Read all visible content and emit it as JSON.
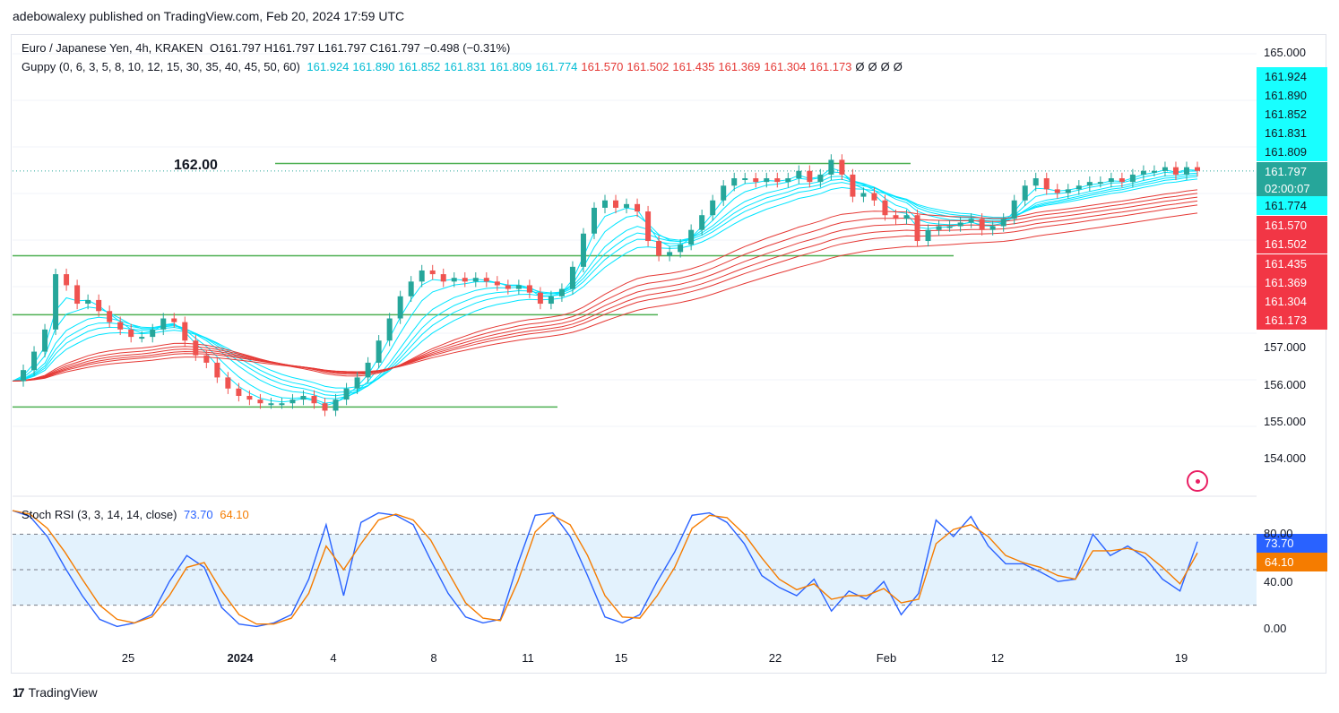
{
  "header": {
    "published": "adebowalexy published on TradingView.com, Feb 20, 2024 17:59 UTC"
  },
  "main_legend": {
    "symbol": "Euro / Japanese Yen, 4h, KRAKEN",
    "ohlc": "O161.797 H161.797 L161.797 C161.797 −0.498 (−0.31%)"
  },
  "guppy_legend": {
    "title": "Guppy (0, 6, 3, 5, 8, 10, 12, 15, 30, 35, 40, 45, 50, 60)",
    "short_values": [
      "161.924",
      "161.890",
      "161.852",
      "161.831",
      "161.809",
      "161.774"
    ],
    "long_values": [
      "161.570",
      "161.502",
      "161.435",
      "161.369",
      "161.304",
      "161.173"
    ],
    "empty_values": [
      "Ø",
      "Ø",
      "Ø",
      "Ø"
    ]
  },
  "stoch_legend": {
    "title": "Stoch RSI (3, 3, 14, 14, close)",
    "k": "73.70",
    "d": "64.10"
  },
  "annotation": {
    "level_label": "162.00"
  },
  "price_badge": {
    "price": "161.797",
    "timer": "02:00:07"
  },
  "colors": {
    "up": "#26a69a",
    "down": "#ef5350",
    "short_ema": "#00e5ff",
    "long_ema": "#e53935",
    "support": "#4caf50",
    "k_line": "#2962ff",
    "d_line": "#f57c00",
    "band": "#e3f2fd"
  },
  "footer": {
    "brand": "TradingView"
  },
  "chart_data": [
    {
      "type": "candlestick",
      "title": "Euro / Japanese Yen, 4h, KRAKEN",
      "y_ticks": [
        "165.000",
        "157.000",
        "156.000",
        "155.000",
        "154.000"
      ],
      "x_ticks": [
        "25",
        "2024",
        "4",
        "8",
        "11",
        "15",
        "22",
        "Feb",
        "12",
        "19"
      ],
      "horizontal_lines": [
        162.0,
        159.5,
        157.9,
        155.4
      ],
      "last_price": 161.797,
      "closes": [
        156.1,
        156.4,
        156.9,
        157.5,
        159.0,
        158.7,
        158.2,
        158.3,
        158.0,
        157.7,
        157.5,
        157.3,
        157.3,
        157.5,
        157.8,
        157.7,
        157.2,
        156.8,
        156.6,
        156.2,
        155.9,
        155.7,
        155.6,
        155.5,
        155.5,
        155.5,
        155.6,
        155.7,
        155.5,
        155.3,
        155.6,
        155.9,
        156.2,
        156.6,
        157.2,
        157.8,
        158.4,
        158.8,
        159.1,
        159.0,
        158.8,
        158.9,
        158.8,
        158.9,
        158.8,
        158.7,
        158.6,
        158.7,
        158.5,
        158.2,
        158.4,
        158.6,
        159.2,
        160.1,
        160.8,
        161.0,
        160.8,
        160.9,
        160.7,
        159.9,
        159.5,
        159.6,
        159.8,
        160.2,
        160.6,
        161.0,
        161.4,
        161.6,
        161.6,
        161.5,
        161.6,
        161.5,
        161.6,
        161.8,
        161.5,
        161.7,
        162.1,
        161.7,
        161.1,
        161.2,
        161.0,
        160.6,
        160.5,
        160.6,
        159.9,
        160.2,
        160.3,
        160.3,
        160.4,
        160.5,
        160.2,
        160.3,
        160.5,
        161.0,
        161.4,
        161.6,
        161.3,
        161.2,
        161.3,
        161.4,
        161.5,
        161.5,
        161.6,
        161.5,
        161.7,
        161.8,
        161.8,
        161.9,
        161.7,
        161.9,
        161.8
      ]
    },
    {
      "type": "line",
      "title": "Stoch RSI (3, 3, 14, 14, close)",
      "y_ticks": [
        "80.00",
        "40.00",
        "0.00"
      ],
      "ylim": [
        0,
        100
      ],
      "series": [
        {
          "name": "K",
          "values": [
            100,
            95,
            78,
            52,
            28,
            8,
            2,
            5,
            12,
            40,
            62,
            52,
            18,
            4,
            2,
            5,
            12,
            42,
            88,
            28,
            90,
            98,
            96,
            88,
            58,
            30,
            10,
            5,
            8,
            55,
            96,
            98,
            78,
            45,
            10,
            5,
            12,
            40,
            65,
            96,
            98,
            90,
            72,
            45,
            35,
            28,
            42,
            15,
            32,
            25,
            40,
            12,
            30,
            92,
            78,
            95,
            70,
            55,
            55,
            48,
            40,
            42,
            80,
            62,
            70,
            60,
            42,
            32,
            73.7
          ]
        },
        {
          "name": "D",
          "values": [
            100,
            97,
            85,
            65,
            42,
            20,
            8,
            5,
            10,
            28,
            52,
            56,
            32,
            12,
            4,
            4,
            9,
            30,
            70,
            50,
            72,
            92,
            97,
            92,
            75,
            48,
            22,
            9,
            7,
            40,
            82,
            96,
            88,
            62,
            28,
            10,
            9,
            28,
            52,
            85,
            96,
            94,
            80,
            60,
            42,
            33,
            38,
            25,
            28,
            28,
            34,
            22,
            25,
            72,
            84,
            88,
            78,
            62,
            56,
            52,
            45,
            42,
            66,
            66,
            68,
            64,
            52,
            38,
            64.1
          ]
        }
      ]
    }
  ]
}
